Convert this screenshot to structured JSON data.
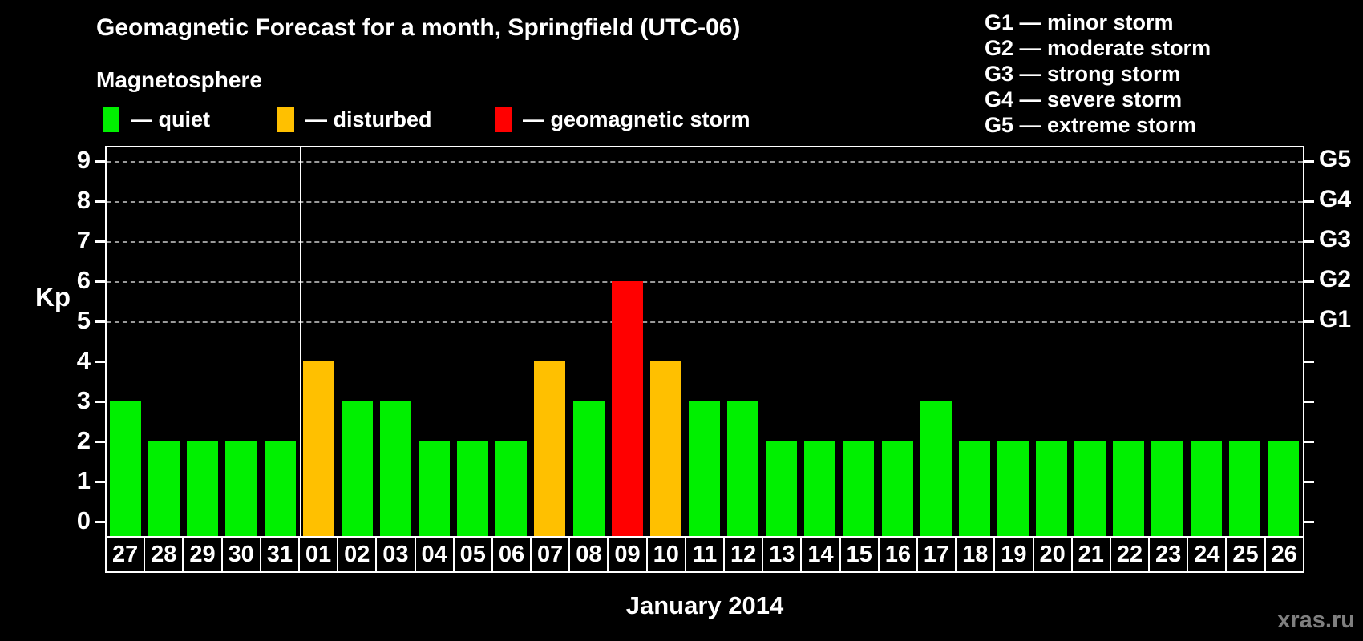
{
  "title": "Geomagnetic Forecast for a month, Springfield (UTC-06)",
  "magnetosphere_legend": {
    "heading": "Magnetosphere",
    "items": [
      {
        "name": "quiet",
        "label": "— quiet",
        "color": "#00f000"
      },
      {
        "name": "disturbed",
        "label": "— disturbed",
        "color": "#ffc000"
      },
      {
        "name": "storm",
        "label": "— geomagnetic storm",
        "color": "#ff0000"
      }
    ]
  },
  "g_scale_legend": {
    "items": [
      "G1 — minor storm",
      "G2 — moderate storm",
      "G3 — strong storm",
      "G4 — severe storm",
      "G5 — extreme storm"
    ]
  },
  "watermark": "xras.ru",
  "colors": {
    "quiet": "#00f000",
    "disturbed": "#ffc000",
    "storm": "#ff0000",
    "background": "#000000",
    "axis": "#ffffff",
    "gridline": "#9a9a9a",
    "watermark": "#7f7f7f"
  },
  "chart_data": {
    "type": "bar",
    "title": "Geomagnetic Forecast for a month, Springfield (UTC-06)",
    "xlabel": "January 2014",
    "ylabel": "Kp",
    "ylim": [
      0,
      9
    ],
    "y_ticks": [
      0,
      1,
      2,
      3,
      4,
      5,
      6,
      7,
      8,
      9
    ],
    "gridlines_at": [
      5,
      6,
      7,
      8,
      9
    ],
    "grid": "dashed horizontal at storm levels only",
    "legend_position": "top",
    "right_axis_labels": [
      {
        "kp": 5,
        "label": "G1"
      },
      {
        "kp": 6,
        "label": "G2"
      },
      {
        "kp": 7,
        "label": "G3"
      },
      {
        "kp": 8,
        "label": "G4"
      },
      {
        "kp": 9,
        "label": "G5"
      }
    ],
    "month_separator_after_index": 4,
    "categories": [
      "27",
      "28",
      "29",
      "30",
      "31",
      "01",
      "02",
      "03",
      "04",
      "05",
      "06",
      "07",
      "08",
      "09",
      "10",
      "11",
      "12",
      "13",
      "14",
      "15",
      "16",
      "17",
      "18",
      "19",
      "20",
      "21",
      "22",
      "23",
      "24",
      "25",
      "26"
    ],
    "values": [
      3,
      2,
      2,
      2,
      2,
      4,
      3,
      3,
      2,
      2,
      2,
      4,
      3,
      6,
      4,
      3,
      3,
      2,
      2,
      2,
      2,
      3,
      2,
      2,
      2,
      2,
      2,
      2,
      2,
      2,
      2
    ],
    "statuses": [
      "quiet",
      "quiet",
      "quiet",
      "quiet",
      "quiet",
      "disturbed",
      "quiet",
      "quiet",
      "quiet",
      "quiet",
      "quiet",
      "disturbed",
      "quiet",
      "storm",
      "disturbed",
      "quiet",
      "quiet",
      "quiet",
      "quiet",
      "quiet",
      "quiet",
      "quiet",
      "quiet",
      "quiet",
      "quiet",
      "quiet",
      "quiet",
      "quiet",
      "quiet",
      "quiet",
      "quiet"
    ]
  }
}
